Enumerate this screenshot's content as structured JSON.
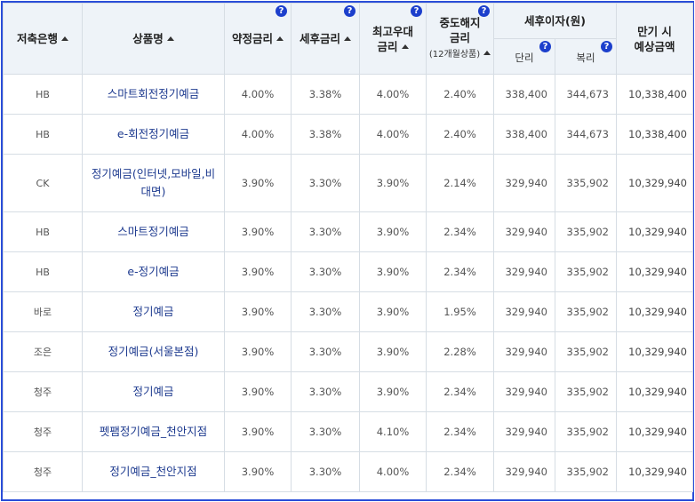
{
  "columns": {
    "bank": "저축은행",
    "product": "상품명",
    "base_rate": "약정금리",
    "after_tax_rate": "세후금리",
    "max_rate": "최고우대\n금리",
    "max_rate_l1": "최고우대",
    "max_rate_l2": "금리",
    "early_rate_l1": "중도해지",
    "early_rate_l2": "금리",
    "early_rate_note": "(12개월상품)",
    "after_tax_interest": "세후이자(원)",
    "simple": "단리",
    "compound": "복리",
    "maturity_l1": "만기 시",
    "maturity_l2": "예상금액"
  },
  "help_icon_label": "?",
  "rows": [
    {
      "bank": "HB",
      "product": "스마트회전정기예금",
      "base_rate": "4.00%",
      "after_tax_rate": "3.38%",
      "max_rate": "4.00%",
      "early_rate": "2.40%",
      "simple": "338,400",
      "compound": "344,673",
      "maturity": "10,338,400"
    },
    {
      "bank": "HB",
      "product": "e-회전정기예금",
      "base_rate": "4.00%",
      "after_tax_rate": "3.38%",
      "max_rate": "4.00%",
      "early_rate": "2.40%",
      "simple": "338,400",
      "compound": "344,673",
      "maturity": "10,338,400"
    },
    {
      "bank": "CK",
      "product": "정기예금(인터넷,모바일,비대면)",
      "base_rate": "3.90%",
      "after_tax_rate": "3.30%",
      "max_rate": "3.90%",
      "early_rate": "2.14%",
      "simple": "329,940",
      "compound": "335,902",
      "maturity": "10,329,940"
    },
    {
      "bank": "HB",
      "product": "스마트정기예금",
      "base_rate": "3.90%",
      "after_tax_rate": "3.30%",
      "max_rate": "3.90%",
      "early_rate": "2.34%",
      "simple": "329,940",
      "compound": "335,902",
      "maturity": "10,329,940"
    },
    {
      "bank": "HB",
      "product": "e-정기예금",
      "base_rate": "3.90%",
      "after_tax_rate": "3.30%",
      "max_rate": "3.90%",
      "early_rate": "2.34%",
      "simple": "329,940",
      "compound": "335,902",
      "maturity": "10,329,940"
    },
    {
      "bank": "바로",
      "product": "정기예금",
      "base_rate": "3.90%",
      "after_tax_rate": "3.30%",
      "max_rate": "3.90%",
      "early_rate": "1.95%",
      "simple": "329,940",
      "compound": "335,902",
      "maturity": "10,329,940"
    },
    {
      "bank": "조은",
      "product": "정기예금(서울본점)",
      "base_rate": "3.90%",
      "after_tax_rate": "3.30%",
      "max_rate": "3.90%",
      "early_rate": "2.28%",
      "simple": "329,940",
      "compound": "335,902",
      "maturity": "10,329,940"
    },
    {
      "bank": "청주",
      "product": "정기예금",
      "base_rate": "3.90%",
      "after_tax_rate": "3.30%",
      "max_rate": "3.90%",
      "early_rate": "2.34%",
      "simple": "329,940",
      "compound": "335,902",
      "maturity": "10,329,940"
    },
    {
      "bank": "청주",
      "product": "펫팸정기예금_천안지점",
      "base_rate": "3.90%",
      "after_tax_rate": "3.30%",
      "max_rate": "4.10%",
      "early_rate": "2.34%",
      "simple": "329,940",
      "compound": "335,902",
      "maturity": "10,329,940"
    },
    {
      "bank": "청주",
      "product": "정기예금_천안지점",
      "base_rate": "3.90%",
      "after_tax_rate": "3.30%",
      "max_rate": "4.00%",
      "early_rate": "2.34%",
      "simple": "329,940",
      "compound": "335,902",
      "maturity": "10,329,940"
    }
  ],
  "colors": {
    "header_bg": "#eef3f8",
    "border": "#d6dde4",
    "frame": "#2a4dd8",
    "link": "#1d3a8f",
    "help_icon": "#1c3fcc"
  }
}
